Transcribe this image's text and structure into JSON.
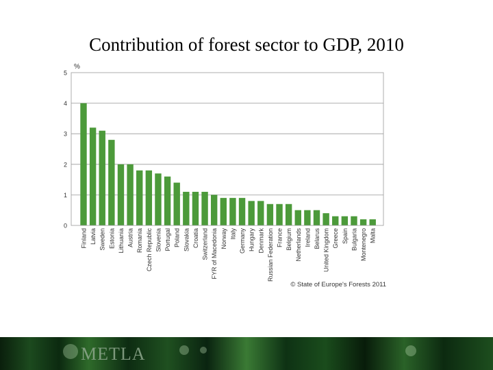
{
  "slide": {
    "title": "Contribution of forest sector to GDP, 2010"
  },
  "footer": {
    "logo_text": "METLA"
  },
  "colors": {
    "bar": "#4c9a3a",
    "grid": "#999999",
    "axis_text": "#333333"
  },
  "chart_data": {
    "type": "bar",
    "title": "",
    "xlabel": "",
    "ylabel": "%",
    "ylim": [
      0,
      5
    ],
    "yticks": [
      0,
      1,
      2,
      3,
      4,
      5
    ],
    "grid": true,
    "categories": [
      "Finland",
      "Latvia",
      "Sweden",
      "Estonia",
      "Lithuania",
      "Austria",
      "Romania",
      "Czech Republic",
      "Slovenia",
      "Portugal",
      "Poland",
      "Slovakia",
      "Croatia",
      "Switzerland",
      "FYR of Macedonia",
      "Norway",
      "Italy",
      "Germany",
      "Hungary",
      "Denmark",
      "Russian Federation",
      "France",
      "Belgium",
      "Netherlands",
      "Ireland",
      "Belarus",
      "United Kingdom",
      "Greece",
      "Spain",
      "Bulgaria",
      "Montenegro",
      "Malta"
    ],
    "values": [
      4.0,
      3.2,
      3.1,
      2.8,
      2.0,
      2.0,
      1.8,
      1.8,
      1.7,
      1.6,
      1.4,
      1.1,
      1.1,
      1.1,
      1.0,
      0.9,
      0.9,
      0.9,
      0.8,
      0.8,
      0.7,
      0.7,
      0.7,
      0.5,
      0.5,
      0.5,
      0.4,
      0.3,
      0.3,
      0.3,
      0.2,
      0.2
    ],
    "source_note": "© State of Europe's Forests 2011"
  }
}
